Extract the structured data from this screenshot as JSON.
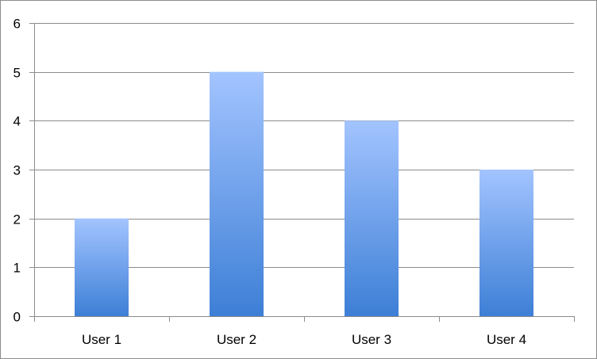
{
  "chart_data": {
    "type": "bar",
    "title": "",
    "xlabel": "",
    "ylabel": "",
    "categories": [
      "User 1",
      "User 2",
      "User 3",
      "User 4"
    ],
    "values": [
      2,
      5,
      4,
      3
    ],
    "ylim": [
      0,
      6
    ],
    "yticks": [
      "0",
      "1",
      "2",
      "3",
      "4",
      "5",
      "6"
    ],
    "grid": true,
    "legend": "none",
    "colors": {
      "bar_top": "#a3c4ff",
      "bar_bottom": "#3d7fd6",
      "gridline": "#8c8c8c",
      "axis": "#8c8c8c"
    }
  }
}
